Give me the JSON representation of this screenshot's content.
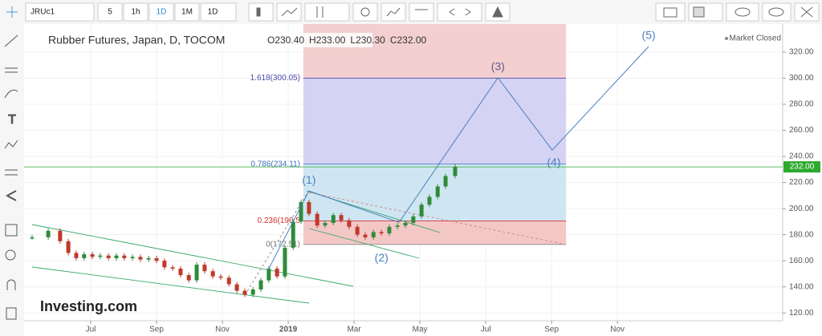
{
  "toolbar": {
    "symbol": "JRUc1",
    "buttons": [
      "5",
      "1h",
      "1D",
      "1M",
      "1D"
    ]
  },
  "chart_data": {
    "type": "candlestick",
    "title": "Rubber Futures, Japan, D, TOCOM",
    "ohlc": [
      "O230.40",
      "H233.00",
      "L230.30",
      "C232.00"
    ],
    "status": "Market Closed",
    "watermark": "Investing.com",
    "up_color": "#2e8b3a",
    "down_color": "#c0392b",
    "x": [
      4.22,
      4.71,
      5.07,
      5.32,
      5.56,
      5.8,
      6.05,
      6.29,
      6.54,
      6.78,
      7.02,
      7.27,
      7.51,
      7.76,
      8.0,
      8.24,
      8.49,
      8.73,
      8.98,
      9.22,
      9.46,
      9.71,
      9.95,
      10.2,
      10.44,
      10.68,
      10.93,
      11.17,
      11.41,
      11.66,
      11.9,
      12.15,
      12.39,
      12.63,
      12.88,
      13.12,
      13.37,
      13.61,
      13.85,
      14.1,
      14.34,
      14.59,
      14.83,
      15.07,
      15.32,
      15.56,
      15.8,
      16.05,
      16.29,
      16.54,
      16.78,
      17.07
    ],
    "values": [
      178,
      183,
      175,
      166,
      162,
      165,
      163,
      164,
      162,
      164,
      162,
      163,
      161,
      162,
      160,
      155,
      154,
      149,
      145,
      157,
      152,
      148,
      147,
      142,
      137,
      134,
      138,
      145,
      154,
      148,
      170,
      190,
      205,
      196,
      187,
      189,
      195,
      191,
      186,
      180,
      178,
      182,
      181,
      186,
      187,
      189,
      194,
      203,
      209,
      217,
      225,
      232
    ],
    "xlim": [
      4.22,
      27.02
    ],
    "ylim": [
      114,
      341.5
    ],
    "xticks": [
      {
        "value": 6,
        "label": "Jul"
      },
      {
        "value": 8,
        "label": "Sep"
      },
      {
        "value": 10,
        "label": "Nov"
      },
      {
        "value": 12,
        "label": "2019"
      },
      {
        "value": 14,
        "label": "Mar"
      },
      {
        "value": 16,
        "label": "May"
      },
      {
        "value": 18,
        "label": "Jul"
      },
      {
        "value": 20,
        "label": "Sep"
      },
      {
        "value": 22,
        "label": "Nov"
      }
    ],
    "yticks": [
      {
        "value": 120,
        "label": "120.00"
      },
      {
        "value": 140,
        "label": "140.00"
      },
      {
        "value": 160,
        "label": "160.00"
      },
      {
        "value": 180,
        "label": "180.00"
      },
      {
        "value": 200,
        "label": "200.00"
      },
      {
        "value": 220,
        "label": "220.00"
      },
      {
        "value": 240,
        "label": "240.00"
      },
      {
        "value": 260,
        "label": "260.00"
      },
      {
        "value": 280,
        "label": "280.00"
      },
      {
        "value": 300,
        "label": "300.00"
      },
      {
        "value": 320,
        "label": "320.00"
      }
    ],
    "last_price": {
      "value": 232,
      "label": "232.00",
      "color": "#2eaa2e"
    },
    "fib": {
      "x": [
        12.46,
        20.44
      ],
      "levels": [
        {
          "value": 172.5,
          "label": "0(172.51)",
          "color": "#777777",
          "fill": "#f4c7c7"
        },
        {
          "value": 190.5,
          "label": "0.236(190.5",
          "color": "#d03030",
          "fill": "#cfe6f2"
        },
        {
          "value": 234.11,
          "label": "0.786(234.11)",
          "color": "#3c6fc0",
          "fill": "#d5d3f3"
        },
        {
          "value": 300.05,
          "label": "1.618(300.05)",
          "color": "#4a4aa8",
          "fill": "#f4cfcf"
        }
      ]
    },
    "waves": [
      {
        "x": 11.37,
        "y": 152
      },
      {
        "label": "(1)",
        "x": 12.63,
        "y": 213.5
      },
      {
        "label": "(2)",
        "x": 15.37,
        "y": 189.5
      },
      {
        "label": "(3)",
        "x": 18.37,
        "y": 300.3
      },
      {
        "label": "(4)",
        "x": 20.02,
        "y": 244.9
      },
      {
        "label": "(5)",
        "x": 22.95,
        "y": 324.3
      }
    ],
    "wave_color": "#4a7fc0"
  }
}
